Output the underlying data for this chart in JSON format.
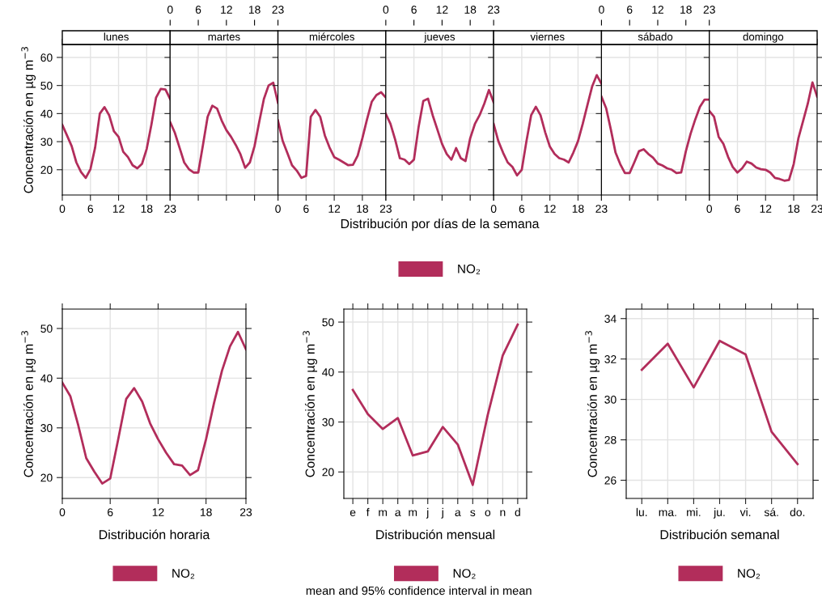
{
  "chart_data": [
    {
      "type": "line",
      "title": "lunes",
      "ylabel": "Concentración en µg m$^{−3}$",
      "x": [
        0,
        1,
        2,
        3,
        4,
        5,
        6,
        7,
        8,
        9,
        10,
        11,
        12,
        13,
        14,
        15,
        16,
        17,
        18,
        19,
        20,
        21,
        22,
        23
      ],
      "xlim": [
        0,
        23
      ],
      "xticks": [
        0,
        6,
        12,
        18,
        23
      ],
      "ylim": [
        11,
        64.6
      ],
      "yticks": [
        20,
        30,
        40,
        50,
        60
      ],
      "grid": true,
      "series": [
        {
          "color": "#b22d5b",
          "values": [
            36,
            32.2,
            28.4,
            22.6,
            19.2,
            17.1,
            20.2,
            27.9,
            40,
            42.3,
            39.4,
            33.7,
            31.7,
            26.4,
            24.5,
            21.6,
            20.5,
            22.1,
            27.4,
            36,
            45.7,
            48.8,
            48.6,
            45.2
          ]
        }
      ]
    },
    {
      "type": "line",
      "title": "martes",
      "x": [
        0,
        1,
        2,
        3,
        4,
        5,
        6,
        7,
        8,
        9,
        10,
        11,
        12,
        13,
        14,
        15,
        16,
        17,
        18,
        19,
        20,
        21,
        22,
        23
      ],
      "xlim": [
        0,
        23
      ],
      "xticks": [
        0,
        6,
        12,
        18,
        23
      ],
      "x2lim": [
        0,
        23
      ],
      "x2ticks": [
        0,
        6,
        12,
        18,
        23
      ],
      "ylim": [
        11,
        64.6
      ],
      "yticks": [
        20,
        30,
        40,
        50,
        60
      ],
      "tick_labels": false,
      "grid": true,
      "series": [
        {
          "color": "#b22d5b",
          "values": [
            37,
            33.2,
            27.9,
            22.6,
            20.2,
            19,
            19,
            28.8,
            38.9,
            42.8,
            41.8,
            37.5,
            34.1,
            31.7,
            28.8,
            25.5,
            20.7,
            22.6,
            28.4,
            37,
            45.2,
            50,
            51,
            43.8
          ]
        }
      ]
    },
    {
      "type": "line",
      "title": "miércoles",
      "x": [
        0,
        1,
        2,
        3,
        4,
        5,
        6,
        7,
        8,
        9,
        10,
        11,
        12,
        13,
        14,
        15,
        16,
        17,
        18,
        19,
        20,
        21,
        22,
        23
      ],
      "xlim": [
        0,
        23
      ],
      "xticks": [
        0,
        6,
        12,
        18,
        23
      ],
      "ylim": [
        11,
        64.6
      ],
      "yticks": [
        20,
        30,
        40,
        50,
        60
      ],
      "tick_labels": "x",
      "grid": true,
      "series": [
        {
          "color": "#b22d5b",
          "values": [
            37.5,
            30.3,
            26,
            21.6,
            19.7,
            17.1,
            17.8,
            38.9,
            41.3,
            38.9,
            32.2,
            27.9,
            24.5,
            23.6,
            22.6,
            21.6,
            21.8,
            25,
            31.2,
            38,
            44.2,
            46.6,
            47.6,
            45.7
          ]
        }
      ]
    },
    {
      "type": "line",
      "title": "jueves",
      "xlabel": "Distribución por días de la semana",
      "x": [
        0,
        1,
        2,
        3,
        4,
        5,
        6,
        7,
        8,
        9,
        10,
        11,
        12,
        13,
        14,
        15,
        16,
        17,
        18,
        19,
        20,
        21,
        22,
        23
      ],
      "xlim": [
        0,
        23
      ],
      "xticks": [
        0,
        6,
        12,
        18,
        23
      ],
      "x2lim": [
        0,
        23
      ],
      "x2ticks": [
        0,
        6,
        12,
        18,
        23
      ],
      "ylim": [
        11,
        64.6
      ],
      "yticks": [
        20,
        30,
        40,
        50,
        60
      ],
      "tick_labels": false,
      "grid": true,
      "legend": "bottom",
      "series": [
        {
          "name": "NO₂",
          "color": "#b22d5b",
          "values": [
            39.9,
            36.3,
            30.7,
            24.1,
            23.6,
            22,
            23.6,
            35.3,
            44.5,
            45.3,
            39.4,
            34.3,
            29.2,
            25.6,
            23.6,
            27.7,
            24.1,
            23.1,
            31.2,
            36.3,
            39.4,
            43.5,
            48.4,
            44
          ]
        }
      ]
    },
    {
      "type": "line",
      "title": "viernes",
      "x": [
        0,
        1,
        2,
        3,
        4,
        5,
        6,
        7,
        8,
        9,
        10,
        11,
        12,
        13,
        14,
        15,
        16,
        17,
        18,
        19,
        20,
        21,
        22,
        23
      ],
      "xlim": [
        0,
        23
      ],
      "xticks": [
        0,
        6,
        12,
        18,
        23
      ],
      "ylim": [
        11,
        64.6
      ],
      "yticks": [
        20,
        30,
        40,
        50,
        60
      ],
      "tick_labels": "x",
      "grid": true,
      "series": [
        {
          "color": "#b22d5b",
          "values": [
            36.3,
            30.2,
            26.1,
            22.6,
            21,
            18,
            20,
            30.2,
            39.4,
            42.4,
            39.4,
            33.3,
            28.2,
            25.6,
            24.1,
            23.6,
            22.6,
            26.1,
            30.2,
            36.3,
            43,
            49.6,
            53.7,
            50.6
          ]
        }
      ]
    },
    {
      "type": "line",
      "title": "sábado",
      "x": [
        0,
        1,
        2,
        3,
        4,
        5,
        6,
        7,
        8,
        9,
        10,
        11,
        12,
        13,
        14,
        15,
        16,
        17,
        18,
        19,
        20,
        21,
        22,
        23
      ],
      "xlim": [
        0,
        23
      ],
      "xticks": [
        0,
        6,
        12,
        18,
        23
      ],
      "x2lim": [
        0,
        23
      ],
      "x2ticks": [
        0,
        6,
        12,
        18,
        23
      ],
      "ylim": [
        11,
        64.6
      ],
      "yticks": [
        20,
        30,
        40,
        50,
        60
      ],
      "tick_labels": false,
      "grid": true,
      "series": [
        {
          "color": "#b22d5b",
          "values": [
            46,
            41.9,
            34.3,
            26.1,
            22,
            18.8,
            18.8,
            22.6,
            26.6,
            27.3,
            25.6,
            24.3,
            22.2,
            21.5,
            20.5,
            20,
            18.8,
            19,
            26.6,
            32.8,
            37.9,
            42.4,
            45,
            45
          ]
        }
      ]
    },
    {
      "type": "line",
      "title": "domingo",
      "x": [
        0,
        1,
        2,
        3,
        4,
        5,
        6,
        7,
        8,
        9,
        10,
        11,
        12,
        13,
        14,
        15,
        16,
        17,
        18,
        19,
        20,
        21,
        22,
        23
      ],
      "xlim": [
        0,
        23
      ],
      "xticks": [
        0,
        6,
        12,
        18,
        23
      ],
      "ylim": [
        11,
        64.6
      ],
      "yticks": [
        20,
        30,
        40,
        50,
        60
      ],
      "tick_labels": "x",
      "grid": true,
      "series": [
        {
          "color": "#b22d5b",
          "values": [
            40.9,
            38.9,
            31.7,
            29.2,
            24.6,
            21,
            19,
            20.5,
            22.9,
            22.2,
            20.8,
            20.2,
            20,
            19,
            17.1,
            16.7,
            16.1,
            16.4,
            22,
            31.2,
            37.3,
            43.5,
            51.1,
            46
          ]
        }
      ]
    },
    {
      "type": "line",
      "xlabel": "Distribución horaria",
      "ylabel": "Concentración en µg m$^{−3}$",
      "x": [
        0,
        1,
        2,
        3,
        4,
        5,
        6,
        7,
        8,
        9,
        10,
        11,
        12,
        13,
        14,
        15,
        16,
        17,
        18,
        19,
        20,
        21,
        22,
        23
      ],
      "xlim": [
        0,
        23
      ],
      "xticks": [
        0,
        6,
        12,
        18,
        23
      ],
      "ylim": [
        15.8,
        53.9
      ],
      "yticks": [
        20,
        30,
        40,
        50
      ],
      "grid": true,
      "legend": "bottom",
      "series": [
        {
          "name": "NO₂",
          "color": "#b22d5b",
          "values": [
            39.1,
            36.4,
            30.5,
            23.9,
            21.2,
            18.8,
            19.8,
            27.7,
            35.8,
            38,
            35.3,
            30.9,
            27.7,
            25,
            22.7,
            22.4,
            20.5,
            21.5,
            27.7,
            35,
            41.5,
            46.4,
            49.3,
            45.8
          ]
        }
      ]
    },
    {
      "type": "line",
      "xlabel": "Distribución mensual",
      "ylabel": "Concentración en µg m$^{−3}$",
      "categories": [
        "e",
        "f",
        "m",
        "a",
        "m",
        "j",
        "j",
        "a",
        "s",
        "o",
        "n",
        "d"
      ],
      "ylim": [
        14.7,
        52.6
      ],
      "yticks": [
        20,
        30,
        40,
        50
      ],
      "grid": true,
      "legend": "bottom",
      "annotations": [
        "mean and 95% confidence interval in mean"
      ],
      "series": [
        {
          "name": "NO₂",
          "color": "#b22d5b",
          "values": [
            36.4,
            31.6,
            28.6,
            30.8,
            23.3,
            24.1,
            29,
            25.5,
            17.4,
            31.4,
            43.3,
            49.5
          ]
        }
      ]
    },
    {
      "type": "line",
      "xlabel": "Distribución semanal",
      "ylabel": "Concentración en µg m$^{−3}$",
      "categories": [
        "lu.",
        "ma.",
        "mi.",
        "ju.",
        "vi.",
        "sá.",
        "do."
      ],
      "ylim": [
        25.1,
        34.47
      ],
      "yticks": [
        26,
        28,
        30,
        32,
        34
      ],
      "grid": true,
      "legend": "bottom",
      "series": [
        {
          "name": "NO₂",
          "color": "#b22d5b",
          "values": [
            31.47,
            32.76,
            30.59,
            32.9,
            32.23,
            28.4,
            26.8
          ]
        }
      ]
    }
  ]
}
